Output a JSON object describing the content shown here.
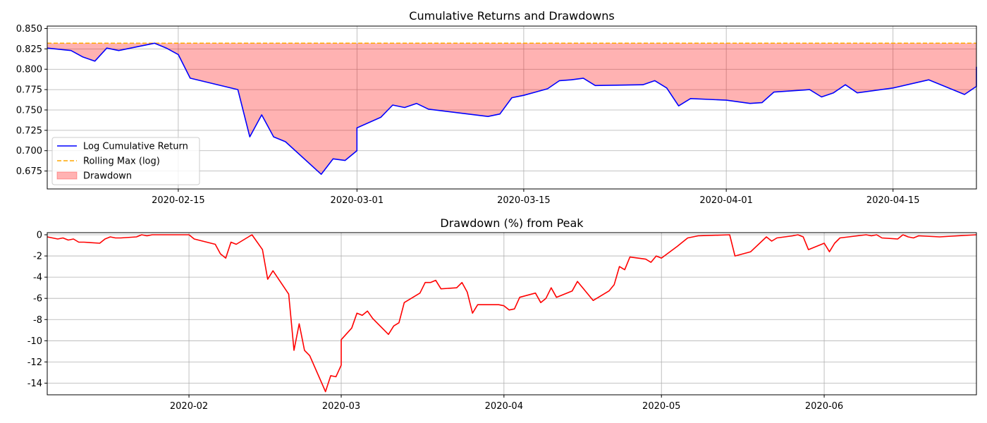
{
  "chart_data": [
    {
      "type": "line",
      "title": "Cumulative Returns and Drawdowns",
      "xlabel": "",
      "ylabel": "",
      "xlim": [
        "2020-02-04",
        "2020-04-22"
      ],
      "ylim": [
        0.653,
        0.853
      ],
      "x_ticks": [
        "2020-02-15",
        "2020-03-01",
        "2020-03-15",
        "2020-04-01",
        "2020-04-15"
      ],
      "y_ticks": [
        "0.675",
        "0.700",
        "0.725",
        "0.750",
        "0.775",
        "0.800",
        "0.825",
        "0.850"
      ],
      "grid": true,
      "legend_position": "lower-left",
      "series": [
        {
          "name": "Log Cumulative Return",
          "style": "line",
          "color": "#0000ff",
          "x": [
            "2020-02-04",
            "2020-02-06",
            "2020-02-07",
            "2020-02-08",
            "2020-02-09",
            "2020-02-10",
            "2020-02-13",
            "2020-02-14",
            "2020-02-15",
            "2020-02-16",
            "2020-02-20",
            "2020-02-21",
            "2020-02-22",
            "2020-02-23",
            "2020-02-24",
            "2020-02-27",
            "2020-02-28",
            "2020-02-29",
            "2020-03-01",
            "2020-03-01",
            "2020-03-03",
            "2020-03-04",
            "2020-03-05",
            "2020-03-06",
            "2020-03-07",
            "2020-03-12",
            "2020-03-13",
            "2020-03-14",
            "2020-03-15",
            "2020-03-17",
            "2020-03-18",
            "2020-03-19",
            "2020-03-20",
            "2020-03-21",
            "2020-03-25",
            "2020-03-26",
            "2020-03-27",
            "2020-03-28",
            "2020-03-29",
            "2020-04-01",
            "2020-04-03",
            "2020-04-04",
            "2020-04-05",
            "2020-04-08",
            "2020-04-09",
            "2020-04-10",
            "2020-04-11",
            "2020-04-12",
            "2020-04-15",
            "2020-04-18",
            "2020-04-21",
            "2020-04-22",
            "2020-04-23"
          ],
          "y": [
            0.826,
            0.823,
            0.815,
            0.81,
            0.826,
            0.823,
            0.832,
            0.826,
            0.818,
            0.789,
            0.775,
            0.717,
            0.744,
            0.717,
            0.711,
            0.671,
            0.69,
            0.688,
            0.7,
            0.728,
            0.741,
            0.756,
            0.753,
            0.758,
            0.751,
            0.742,
            0.745,
            0.765,
            0.768,
            0.776,
            0.786,
            0.787,
            0.789,
            0.78,
            0.781,
            0.786,
            0.777,
            0.755,
            0.764,
            0.762,
            0.758,
            0.759,
            0.772,
            0.775,
            0.766,
            0.771,
            0.781,
            0.771,
            0.777,
            0.787,
            0.769,
            0.779,
            0.803
          ],
          "note": ""
        },
        {
          "name": "Rolling Max (log)",
          "style": "dashed",
          "color": "#ffa500",
          "x": [
            "2020-02-04",
            "2020-04-23"
          ],
          "y": [
            0.832,
            0.832
          ]
        },
        {
          "name": "Drawdown",
          "style": "fill",
          "color": "#ff0000",
          "fill_between": [
            "Log Cumulative Return",
            "Rolling Max (log)"
          ]
        }
      ]
    },
    {
      "type": "line",
      "title": "Drawdown (%) from Peak",
      "xlabel": "",
      "ylabel": "",
      "xlim": [
        "2020-01-05",
        "2020-06-30"
      ],
      "ylim": [
        -15.1,
        0.2
      ],
      "x_ticks": [
        "2020-02",
        "2020-03",
        "2020-04",
        "2020-05",
        "2020-06"
      ],
      "y_ticks": [
        "0",
        "-2",
        "-4",
        "-6",
        "-8",
        "-10",
        "-12",
        "-14"
      ],
      "grid": true,
      "series": [
        {
          "name": "",
          "color": "#ff0000",
          "x": [
            "2020-01-05",
            "2020-01-07",
            "2020-01-08",
            "2020-01-09",
            "2020-01-10",
            "2020-01-11",
            "2020-01-12",
            "2020-01-15",
            "2020-01-16",
            "2020-01-17",
            "2020-01-18",
            "2020-01-19",
            "2020-01-22",
            "2020-01-23",
            "2020-01-24",
            "2020-01-25",
            "2020-01-26",
            "2020-01-27",
            "2020-02-01",
            "2020-02-02",
            "2020-02-06",
            "2020-02-07",
            "2020-02-08",
            "2020-02-09",
            "2020-02-10",
            "2020-02-13",
            "2020-02-15",
            "2020-02-16",
            "2020-02-17",
            "2020-02-20",
            "2020-02-21",
            "2020-02-22",
            "2020-02-23",
            "2020-02-24",
            "2020-02-27",
            "2020-02-28",
            "2020-02-29",
            "2020-03-01",
            "2020-03-01",
            "2020-03-03",
            "2020-03-04",
            "2020-03-05",
            "2020-03-06",
            "2020-03-07",
            "2020-03-10",
            "2020-03-11",
            "2020-03-12",
            "2020-03-13",
            "2020-03-16",
            "2020-03-17",
            "2020-03-18",
            "2020-03-19",
            "2020-03-20",
            "2020-03-23",
            "2020-03-24",
            "2020-03-25",
            "2020-03-26",
            "2020-03-27",
            "2020-03-31",
            "2020-04-01",
            "2020-04-02",
            "2020-04-03",
            "2020-04-04",
            "2020-04-07",
            "2020-04-08",
            "2020-04-09",
            "2020-04-10",
            "2020-04-11",
            "2020-04-14",
            "2020-04-15",
            "2020-04-18",
            "2020-04-21",
            "2020-04-22",
            "2020-04-23",
            "2020-04-24",
            "2020-04-25",
            "2020-04-28",
            "2020-04-29",
            "2020-04-30",
            "2020-05-01",
            "2020-05-04",
            "2020-05-05",
            "2020-05-06",
            "2020-05-08",
            "2020-05-14",
            "2020-05-15",
            "2020-05-18",
            "2020-05-21",
            "2020-05-22",
            "2020-05-23",
            "2020-05-26",
            "2020-05-27",
            "2020-05-28",
            "2020-05-29",
            "2020-06-01",
            "2020-06-02",
            "2020-06-03",
            "2020-06-04",
            "2020-06-09",
            "2020-06-10",
            "2020-06-11",
            "2020-06-12",
            "2020-06-15",
            "2020-06-16",
            "2020-06-17",
            "2020-06-18",
            "2020-06-19",
            "2020-06-23",
            "2020-06-30"
          ],
          "y": [
            -0.2,
            -0.4,
            -0.3,
            -0.5,
            -0.4,
            -0.7,
            -0.7,
            -0.8,
            -0.4,
            -0.2,
            -0.3,
            -0.3,
            -0.2,
            0.0,
            -0.1,
            0.0,
            0.0,
            0.0,
            0.0,
            -0.4,
            -0.9,
            -1.8,
            -2.2,
            -0.7,
            -0.9,
            0.0,
            -1.4,
            -4.2,
            -3.4,
            -5.6,
            -10.9,
            -8.4,
            -10.9,
            -11.4,
            -14.8,
            -13.3,
            -13.4,
            -12.3,
            -9.9,
            -8.8,
            -7.4,
            -7.6,
            -7.2,
            -7.9,
            -9.4,
            -8.6,
            -8.3,
            -6.4,
            -5.5,
            -4.5,
            -4.5,
            -4.3,
            -5.1,
            -5.0,
            -4.5,
            -5.4,
            -7.4,
            -6.6,
            -6.6,
            -6.7,
            -7.1,
            -7.0,
            -5.9,
            -5.5,
            -6.4,
            -6.0,
            -5.0,
            -5.9,
            -5.3,
            -4.4,
            -6.2,
            -5.3,
            -4.7,
            -3.0,
            -3.3,
            -2.1,
            -2.3,
            -2.6,
            -2.0,
            -2.2,
            -1.1,
            -0.7,
            -0.3,
            -0.1,
            0.0,
            -2.0,
            -1.6,
            -0.2,
            -0.6,
            -0.3,
            -0.1,
            0.0,
            -0.2,
            -1.4,
            -0.8,
            -1.6,
            -0.8,
            -0.3,
            0.0,
            -0.1,
            0.0,
            -0.3,
            -0.4,
            0.0,
            -0.2,
            -0.3,
            -0.1,
            -0.2,
            0.0
          ]
        }
      ]
    }
  ]
}
